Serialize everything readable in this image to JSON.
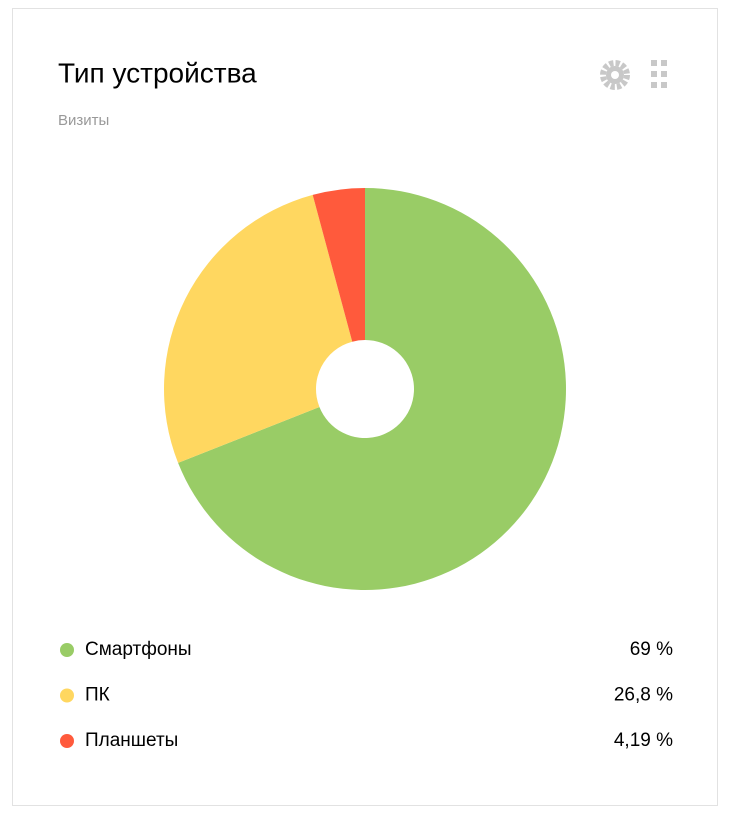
{
  "chart_data": {
    "type": "pie",
    "title": "Тип устройства",
    "subtitle": "Визиты",
    "categories": [
      "Смартфоны",
      "ПК",
      "Планшеты"
    ],
    "values": [
      69,
      26.8,
      4.19
    ],
    "value_labels": [
      "69 %",
      "26,8 %",
      "4,19 %"
    ],
    "colors": [
      "#99cc66",
      "#ffd760",
      "#ff5a3c"
    ]
  }
}
